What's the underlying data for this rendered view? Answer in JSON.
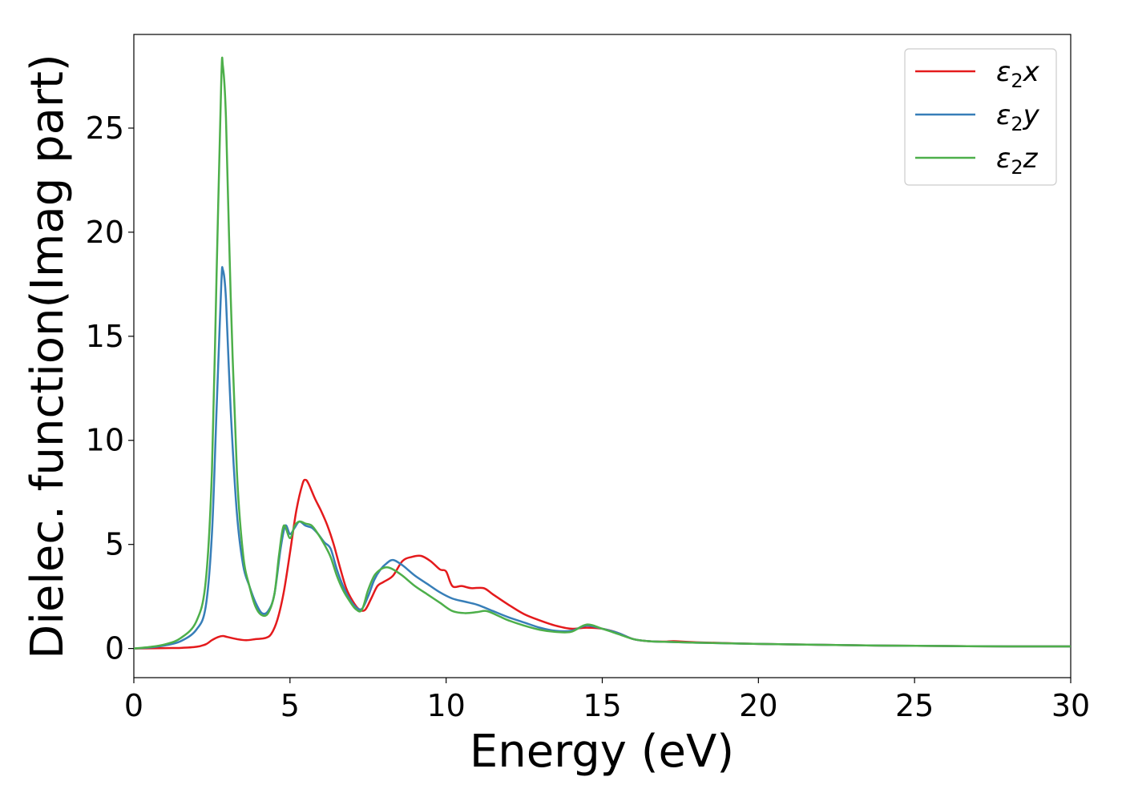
{
  "chart_data": {
    "type": "line",
    "title": "",
    "xlabel": "Energy (eV)",
    "ylabel": "Dielec. function(Imag part)",
    "xlim": [
      0,
      30
    ],
    "ylim": [
      -1.4,
      29.5
    ],
    "xticks": [
      0,
      5,
      10,
      15,
      20,
      25,
      30
    ],
    "yticks": [
      0,
      5,
      10,
      15,
      20,
      25
    ],
    "grid": false,
    "legend_position": "top-right",
    "series": [
      {
        "name": "ε₂x",
        "legend_main": "ε",
        "legend_sub": "2",
        "legend_suffix": "x",
        "color": "#e41a1c",
        "points": [
          [
            0,
            0
          ],
          [
            1,
            0.02
          ],
          [
            1.5,
            0.03
          ],
          [
            2,
            0.08
          ],
          [
            2.3,
            0.2
          ],
          [
            2.5,
            0.4
          ],
          [
            2.7,
            0.55
          ],
          [
            2.85,
            0.6
          ],
          [
            3,
            0.55
          ],
          [
            3.3,
            0.45
          ],
          [
            3.6,
            0.4
          ],
          [
            3.9,
            0.45
          ],
          [
            4.2,
            0.5
          ],
          [
            4.4,
            0.7
          ],
          [
            4.6,
            1.4
          ],
          [
            4.8,
            2.7
          ],
          [
            5,
            4.6
          ],
          [
            5.2,
            6.6
          ],
          [
            5.4,
            7.9
          ],
          [
            5.5,
            8.1
          ],
          [
            5.6,
            7.9
          ],
          [
            5.8,
            7.2
          ],
          [
            6,
            6.6
          ],
          [
            6.2,
            5.9
          ],
          [
            6.4,
            5.0
          ],
          [
            6.6,
            3.9
          ],
          [
            6.8,
            2.9
          ],
          [
            7,
            2.3
          ],
          [
            7.2,
            1.9
          ],
          [
            7.4,
            1.85
          ],
          [
            7.6,
            2.4
          ],
          [
            7.8,
            3.0
          ],
          [
            8,
            3.2
          ],
          [
            8.3,
            3.5
          ],
          [
            8.6,
            4.2
          ],
          [
            8.9,
            4.4
          ],
          [
            9.2,
            4.45
          ],
          [
            9.5,
            4.2
          ],
          [
            9.8,
            3.8
          ],
          [
            10,
            3.7
          ],
          [
            10.2,
            3.0
          ],
          [
            10.5,
            3.0
          ],
          [
            10.8,
            2.9
          ],
          [
            11.2,
            2.9
          ],
          [
            11.5,
            2.6
          ],
          [
            12,
            2.1
          ],
          [
            12.5,
            1.65
          ],
          [
            13,
            1.35
          ],
          [
            13.5,
            1.1
          ],
          [
            14,
            0.95
          ],
          [
            14.5,
            1.0
          ],
          [
            15,
            0.95
          ],
          [
            15.5,
            0.75
          ],
          [
            16,
            0.45
          ],
          [
            16.5,
            0.35
          ],
          [
            17,
            0.33
          ],
          [
            17.3,
            0.35
          ],
          [
            18,
            0.3
          ],
          [
            20,
            0.22
          ],
          [
            22,
            0.18
          ],
          [
            24,
            0.14
          ],
          [
            26,
            0.12
          ],
          [
            28,
            0.1
          ],
          [
            30,
            0.1
          ]
        ]
      },
      {
        "name": "ε₂y",
        "legend_main": "ε",
        "legend_sub": "2",
        "legend_suffix": "y",
        "color": "#377eb8",
        "points": [
          [
            0,
            0
          ],
          [
            0.5,
            0.05
          ],
          [
            1,
            0.15
          ],
          [
            1.5,
            0.35
          ],
          [
            2,
            0.9
          ],
          [
            2.3,
            2.0
          ],
          [
            2.5,
            5.5
          ],
          [
            2.65,
            11.5
          ],
          [
            2.8,
            17.5
          ],
          [
            2.85,
            18.2
          ],
          [
            2.95,
            16.8
          ],
          [
            3.1,
            11.5
          ],
          [
            3.3,
            6.5
          ],
          [
            3.5,
            4.0
          ],
          [
            3.7,
            3.0
          ],
          [
            3.9,
            2.2
          ],
          [
            4.1,
            1.7
          ],
          [
            4.3,
            1.8
          ],
          [
            4.5,
            2.6
          ],
          [
            4.7,
            4.8
          ],
          [
            4.85,
            5.9
          ],
          [
            5,
            5.5
          ],
          [
            5.15,
            5.8
          ],
          [
            5.3,
            6.1
          ],
          [
            5.5,
            5.9
          ],
          [
            5.7,
            5.8
          ],
          [
            5.9,
            5.5
          ],
          [
            6.1,
            5.1
          ],
          [
            6.3,
            4.8
          ],
          [
            6.5,
            3.8
          ],
          [
            6.7,
            3.0
          ],
          [
            6.9,
            2.4
          ],
          [
            7.1,
            2.0
          ],
          [
            7.3,
            1.9
          ],
          [
            7.5,
            2.5
          ],
          [
            7.7,
            3.3
          ],
          [
            7.9,
            3.8
          ],
          [
            8.1,
            4.1
          ],
          [
            8.3,
            4.25
          ],
          [
            8.6,
            4.0
          ],
          [
            9,
            3.5
          ],
          [
            9.4,
            3.1
          ],
          [
            9.8,
            2.7
          ],
          [
            10.2,
            2.4
          ],
          [
            10.6,
            2.25
          ],
          [
            11,
            2.1
          ],
          [
            11.5,
            1.8
          ],
          [
            12,
            1.5
          ],
          [
            12.5,
            1.25
          ],
          [
            13,
            1.0
          ],
          [
            13.5,
            0.85
          ],
          [
            14,
            0.85
          ],
          [
            14.5,
            1.1
          ],
          [
            15,
            0.95
          ],
          [
            15.5,
            0.75
          ],
          [
            16,
            0.45
          ],
          [
            16.5,
            0.35
          ],
          [
            17,
            0.32
          ],
          [
            18,
            0.28
          ],
          [
            20,
            0.22
          ],
          [
            22,
            0.18
          ],
          [
            24,
            0.14
          ],
          [
            26,
            0.12
          ],
          [
            28,
            0.1
          ],
          [
            30,
            0.1
          ]
        ]
      },
      {
        "name": "ε₂z",
        "legend_main": "ε",
        "legend_sub": "2",
        "legend_suffix": "z",
        "color": "#4daf4a",
        "points": [
          [
            0,
            0
          ],
          [
            0.5,
            0.07
          ],
          [
            1,
            0.2
          ],
          [
            1.5,
            0.5
          ],
          [
            2,
            1.3
          ],
          [
            2.3,
            3.2
          ],
          [
            2.5,
            8.5
          ],
          [
            2.65,
            18.0
          ],
          [
            2.8,
            27.3
          ],
          [
            2.85,
            28.0
          ],
          [
            2.95,
            25.5
          ],
          [
            3.1,
            17.0
          ],
          [
            3.3,
            8.5
          ],
          [
            3.5,
            4.5
          ],
          [
            3.7,
            3.0
          ],
          [
            3.9,
            2.0
          ],
          [
            4.1,
            1.6
          ],
          [
            4.3,
            1.7
          ],
          [
            4.5,
            2.6
          ],
          [
            4.65,
            4.5
          ],
          [
            4.8,
            5.9
          ],
          [
            5,
            5.3
          ],
          [
            5.15,
            5.9
          ],
          [
            5.3,
            6.1
          ],
          [
            5.5,
            6.0
          ],
          [
            5.7,
            5.9
          ],
          [
            5.9,
            5.5
          ],
          [
            6.1,
            5.0
          ],
          [
            6.3,
            4.4
          ],
          [
            6.5,
            3.5
          ],
          [
            6.7,
            2.8
          ],
          [
            6.9,
            2.3
          ],
          [
            7.1,
            1.9
          ],
          [
            7.3,
            1.85
          ],
          [
            7.5,
            2.8
          ],
          [
            7.7,
            3.5
          ],
          [
            7.9,
            3.8
          ],
          [
            8.1,
            3.9
          ],
          [
            8.3,
            3.8
          ],
          [
            8.6,
            3.5
          ],
          [
            9,
            3.0
          ],
          [
            9.4,
            2.6
          ],
          [
            9.8,
            2.2
          ],
          [
            10.2,
            1.8
          ],
          [
            10.6,
            1.7
          ],
          [
            11,
            1.75
          ],
          [
            11.3,
            1.8
          ],
          [
            11.7,
            1.55
          ],
          [
            12,
            1.35
          ],
          [
            12.5,
            1.1
          ],
          [
            13,
            0.9
          ],
          [
            13.5,
            0.8
          ],
          [
            14,
            0.8
          ],
          [
            14.5,
            1.15
          ],
          [
            15,
            0.95
          ],
          [
            15.5,
            0.7
          ],
          [
            16,
            0.45
          ],
          [
            16.5,
            0.35
          ],
          [
            17,
            0.32
          ],
          [
            18,
            0.28
          ],
          [
            20,
            0.22
          ],
          [
            22,
            0.18
          ],
          [
            24,
            0.14
          ],
          [
            26,
            0.12
          ],
          [
            28,
            0.1
          ],
          [
            30,
            0.1
          ]
        ]
      }
    ]
  }
}
